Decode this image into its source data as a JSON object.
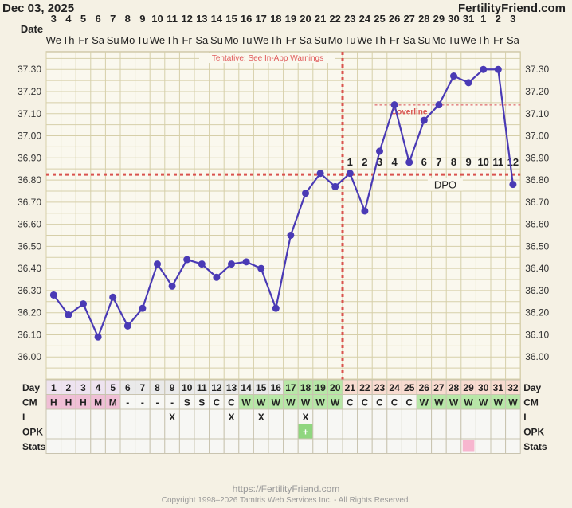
{
  "header": {
    "date": "Dec 03, 2025",
    "site": "FertilityFriend.com"
  },
  "footer": {
    "url": "https://FertilityFriend.com",
    "copyright": "Copyright 1998–2026 Tamtris Web Services Inc. - All Rights Reserved."
  },
  "labels": {
    "date_row": "Date",
    "day_row": "Day",
    "cm_row": "CM",
    "i_row": "I",
    "opk_row": "OPK",
    "stats_row": "Stats",
    "dpo": "DPO"
  },
  "chart_data": {
    "type": "line",
    "title": "",
    "xlabel": "",
    "ylabel": "",
    "ylim": [
      35.9,
      37.38
    ],
    "y_ticks": [
      "36.00",
      "36.10",
      "36.20",
      "36.30",
      "36.40",
      "36.50",
      "36.60",
      "36.70",
      "36.80",
      "36.90",
      "37.00",
      "37.10",
      "37.20",
      "37.30"
    ],
    "dates": [
      "3",
      "4",
      "5",
      "6",
      "7",
      "8",
      "9",
      "10",
      "11",
      "12",
      "13",
      "14",
      "15",
      "16",
      "17",
      "18",
      "19",
      "20",
      "21",
      "22",
      "23",
      "24",
      "25",
      "26",
      "27",
      "28",
      "29",
      "30",
      "31",
      "1",
      "2",
      "3"
    ],
    "weekdays": [
      "We",
      "Th",
      "Fr",
      "Sa",
      "Su",
      "Mo",
      "Tu",
      "We",
      "Th",
      "Fr",
      "Sa",
      "Su",
      "Mo",
      "Tu",
      "We",
      "Th",
      "Fr",
      "Sa",
      "Su",
      "Mo",
      "Tu",
      "We",
      "Th",
      "Fr",
      "Sa",
      "Su",
      "Mo",
      "Tu",
      "We",
      "Th",
      "Fr",
      "Sa"
    ],
    "days": [
      1,
      2,
      3,
      4,
      5,
      6,
      7,
      8,
      9,
      10,
      11,
      12,
      13,
      14,
      15,
      16,
      17,
      18,
      19,
      20,
      21,
      22,
      23,
      24,
      25,
      26,
      27,
      28,
      29,
      30,
      31,
      32
    ],
    "temps": [
      36.28,
      36.19,
      36.24,
      36.09,
      36.27,
      36.14,
      36.22,
      36.42,
      36.32,
      36.44,
      36.42,
      36.36,
      36.42,
      36.43,
      36.4,
      36.22,
      36.55,
      36.74,
      36.83,
      36.77,
      36.83,
      36.66,
      36.93,
      37.14,
      36.88,
      37.07,
      37.14,
      37.27,
      37.24,
      37.3,
      37.3,
      36.78
    ],
    "coverline": 36.825,
    "coverline_label": "Coverline",
    "ovulation_day": 20,
    "tentative_note": "Tentative: See In-App Warnings",
    "dpo": [
      "",
      "",
      "",
      "",
      "",
      "",
      "",
      "",
      "",
      "",
      "",
      "",
      "",
      "",
      "",
      "",
      "",
      "",
      "",
      "",
      "1",
      "2",
      "3",
      "4",
      "5",
      "6",
      "7",
      "8",
      "9",
      "10",
      "11",
      "12"
    ],
    "cm": [
      "H",
      "H",
      "H",
      "M",
      "M",
      "-",
      "-",
      "-",
      "-",
      "S",
      "S",
      "C",
      "C",
      "W",
      "W",
      "W",
      "W",
      "W",
      "W",
      "W",
      "C",
      "C",
      "C",
      "C",
      "C",
      "W",
      "W",
      "W",
      "W",
      "W",
      "W",
      "W"
    ],
    "intercourse": [
      "",
      "",
      "",
      "",
      "",
      "",
      "",
      "",
      "X",
      "",
      "",
      "",
      "X",
      "",
      "X",
      "",
      "",
      "X",
      "",
      "",
      "",
      "",
      "",
      "",
      "",
      "",
      "",
      "",
      "",
      "",
      "",
      ""
    ],
    "opk": [
      "",
      "",
      "",
      "",
      "",
      "",
      "",
      "",
      "",
      "",
      "",
      "",
      "",
      "",
      "",
      "",
      "",
      "+",
      "",
      "",
      "",
      "",
      "",
      "",
      "",
      "",
      "",
      "",
      "",
      "",
      "",
      ""
    ],
    "stats": [
      "",
      "",
      "",
      "",
      "",
      "",
      "",
      "",
      "",
      "",
      "",
      "",
      "",
      "",
      "",
      "",
      "",
      "",
      "",
      "",
      "",
      "",
      "",
      "",
      "",
      "",
      "",
      "",
      "P",
      "",
      "",
      ""
    ]
  },
  "colors": {
    "line": "#4a3ab5",
    "coverline": "#d9534f",
    "grid": "#d6cfa9",
    "fertile_day": "#b7e7a7",
    "period": "#f0bfd6",
    "opk_positive": "#8fd67f",
    "stats_mark": "#f7b6cf",
    "header_tint": "#f8dbd0"
  }
}
